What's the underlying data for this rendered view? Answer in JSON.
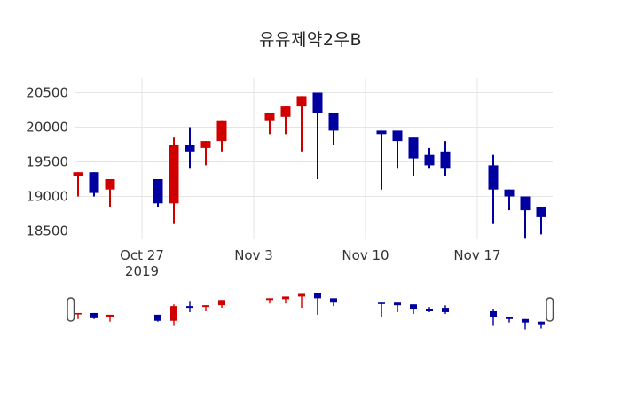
{
  "title": "유유제약2우B",
  "colors": {
    "up": "#d10000",
    "down": "#0000a0",
    "grid": "#e5e5e5",
    "text": "#333333",
    "title_text": "#262626",
    "background": "#ffffff",
    "handle_fill": "#ffffff",
    "handle_border": "#4d4d4d"
  },
  "y_axis": {
    "tick_labels": [
      "20500",
      "20000",
      "19500",
      "19000",
      "18500"
    ],
    "tick_values": [
      20500,
      20000,
      19500,
      19000,
      18500
    ]
  },
  "x_axis": {
    "ticks": [
      {
        "label": "Oct 27",
        "sublabel": "2019",
        "date": "2019-10-27"
      },
      {
        "label": "Nov 3",
        "sublabel": "",
        "date": "2019-11-03"
      },
      {
        "label": "Nov 10",
        "sublabel": "",
        "date": "2019-11-10"
      },
      {
        "label": "Nov 17",
        "sublabel": "",
        "date": "2019-11-17"
      }
    ]
  },
  "rangeslider": {
    "left_handle": "grabber",
    "right_handle": "grabber"
  },
  "chart_data": {
    "type": "candlestick",
    "title": "유유제약2우B",
    "xlabel": "",
    "ylabel": "",
    "ylim": [
      18400,
      20600
    ],
    "x_tick_labels": [
      "Oct 27 2019",
      "Nov 3",
      "Nov 10",
      "Nov 17"
    ],
    "grid": true,
    "up_color_meaning": "close >= open (red, Korean style)",
    "down_color_meaning": "close < open (blue)",
    "series": [
      {
        "date": "2019-10-23",
        "open": 19300,
        "high": 19350,
        "low": 19000,
        "close": 19350
      },
      {
        "date": "2019-10-24",
        "open": 19350,
        "high": 19350,
        "low": 19000,
        "close": 19050
      },
      {
        "date": "2019-10-25",
        "open": 19100,
        "high": 19250,
        "low": 18850,
        "close": 19250
      },
      {
        "date": "2019-10-28",
        "open": 19250,
        "high": 19250,
        "low": 18850,
        "close": 18900
      },
      {
        "date": "2019-10-29",
        "open": 18900,
        "high": 19850,
        "low": 18600,
        "close": 19750
      },
      {
        "date": "2019-10-30",
        "open": 19750,
        "high": 20000,
        "low": 19400,
        "close": 19650
      },
      {
        "date": "2019-10-31",
        "open": 19700,
        "high": 19800,
        "low": 19450,
        "close": 19800
      },
      {
        "date": "2019-11-01",
        "open": 19800,
        "high": 20100,
        "low": 19650,
        "close": 20100
      },
      {
        "date": "2019-11-04",
        "open": 20100,
        "high": 20200,
        "low": 19900,
        "close": 20200
      },
      {
        "date": "2019-11-05",
        "open": 20150,
        "high": 20300,
        "low": 19900,
        "close": 20300
      },
      {
        "date": "2019-11-06",
        "open": 20300,
        "high": 20450,
        "low": 19650,
        "close": 20450
      },
      {
        "date": "2019-11-07",
        "open": 20500,
        "high": 20500,
        "low": 19250,
        "close": 20200
      },
      {
        "date": "2019-11-08",
        "open": 20200,
        "high": 20200,
        "low": 19750,
        "close": 19950
      },
      {
        "date": "2019-11-11",
        "open": 19950,
        "high": 19950,
        "low": 19100,
        "close": 19900
      },
      {
        "date": "2019-11-12",
        "open": 19950,
        "high": 19950,
        "low": 19400,
        "close": 19800
      },
      {
        "date": "2019-11-13",
        "open": 19850,
        "high": 19850,
        "low": 19300,
        "close": 19550
      },
      {
        "date": "2019-11-14",
        "open": 19600,
        "high": 19700,
        "low": 19400,
        "close": 19450
      },
      {
        "date": "2019-11-15",
        "open": 19650,
        "high": 19800,
        "low": 19300,
        "close": 19400
      },
      {
        "date": "2019-11-18",
        "open": 19450,
        "high": 19600,
        "low": 18600,
        "close": 19100
      },
      {
        "date": "2019-11-19",
        "open": 19100,
        "high": 19100,
        "low": 18800,
        "close": 19000
      },
      {
        "date": "2019-11-20",
        "open": 19000,
        "high": 19000,
        "low": 18400,
        "close": 18800
      },
      {
        "date": "2019-11-21",
        "open": 18850,
        "high": 18850,
        "low": 18450,
        "close": 18700
      }
    ]
  }
}
